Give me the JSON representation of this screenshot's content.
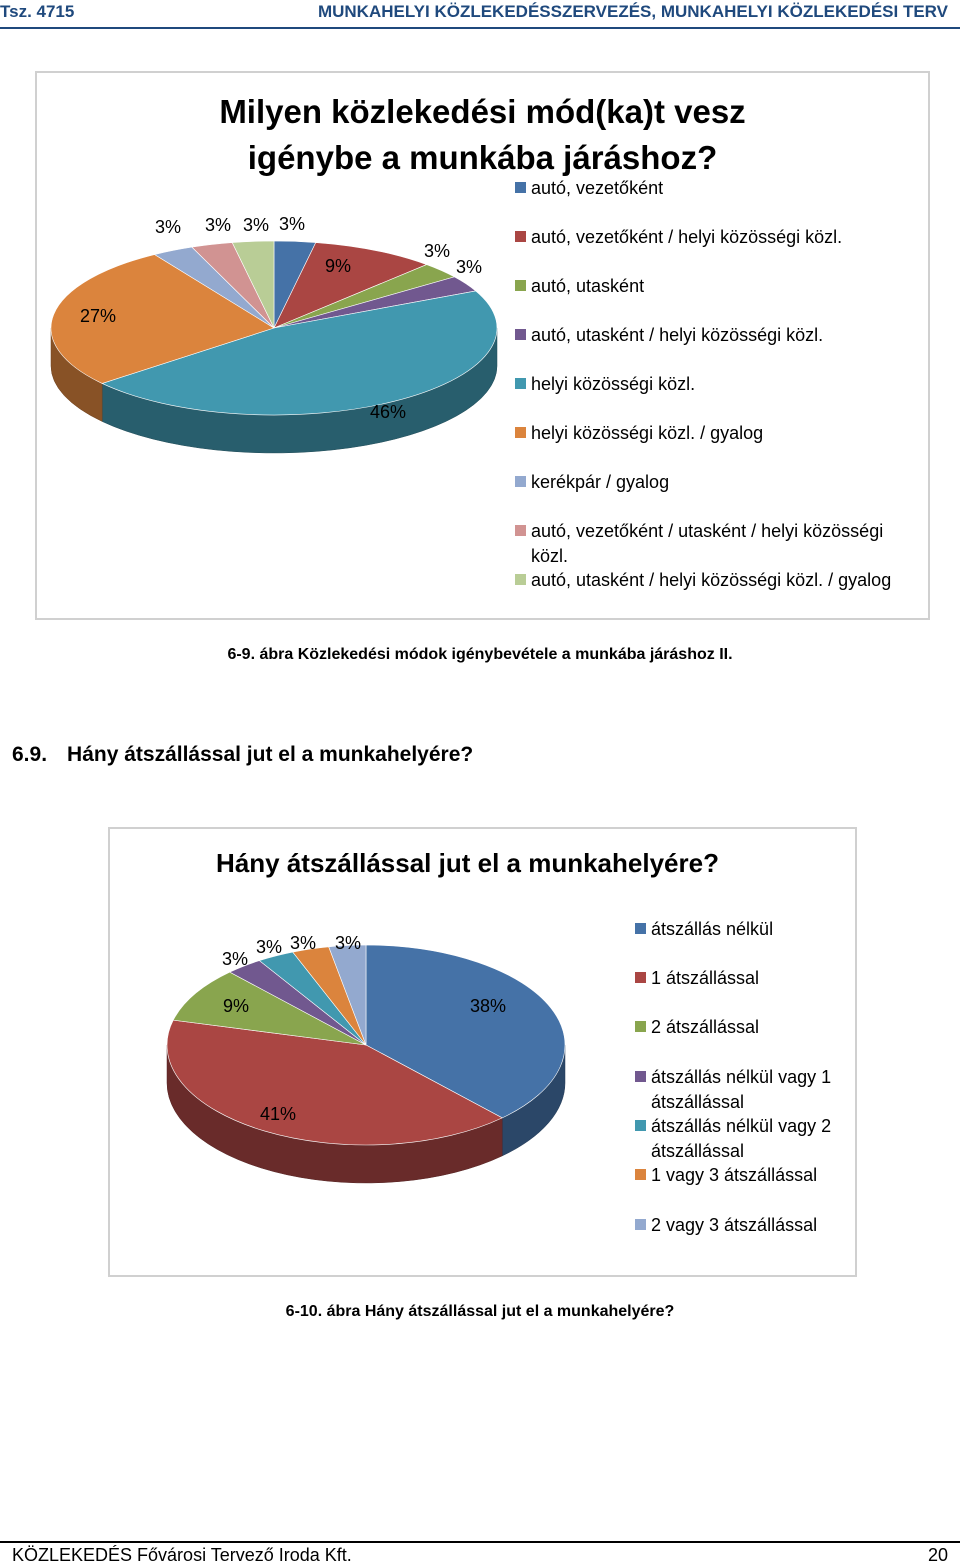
{
  "header": {
    "doc_id": "Tsz. 4715",
    "doc_title": "MUNKAHELYI KÖZLEKEDÉSSZERVEZÉS, MUNKAHELYI KÖZLEKEDÉSI TERV"
  },
  "chart_data": [
    {
      "type": "pie",
      "title": "Milyen közlekedési mód(ka)t vesz igénybe a munkába járáshoz?",
      "legend_position": "right",
      "categories": [
        "autó, vezetőként",
        "autó, vezetőként / helyi közösségi közl.",
        "autó, utasként",
        "autó, utasként / helyi közösségi közl.",
        "helyi közösségi közl.",
        "helyi közösségi közl. / gyalog",
        "kerékpár / gyalog",
        "autó, vezetőként / utasként / helyi közösségi közl.",
        "autó, utasként / helyi közösségi közl. / gyalog"
      ],
      "values": [
        3,
        9,
        3,
        3,
        46,
        27,
        3,
        3,
        3
      ],
      "labels": [
        "3%",
        "9%",
        "3%",
        "3%",
        "46%",
        "27%",
        "3%",
        "3%",
        "3%"
      ],
      "colors": [
        "#4572a7",
        "#aa4643",
        "#89a54e",
        "#71588f",
        "#4198af",
        "#db843d",
        "#93a9cf",
        "#d19392",
        "#b9cd96"
      ]
    },
    {
      "type": "pie",
      "title": "Hány átszállással jut el a munkahelyére?",
      "legend_position": "right",
      "categories": [
        "átszállás nélkül",
        "1 átszállással",
        "2 átszállással",
        "átszállás nélkül vagy 1 átszállással",
        "átszállás nélkül vagy 2 átszállással",
        "1 vagy 3 átszállással",
        "2 vagy 3 átszállással"
      ],
      "values": [
        38,
        41,
        9,
        3,
        3,
        3,
        3
      ],
      "labels": [
        "38%",
        "41%",
        "9%",
        "3%",
        "3%",
        "3%",
        "3%"
      ],
      "colors": [
        "#4572a7",
        "#aa4643",
        "#89a54e",
        "#71588f",
        "#4198af",
        "#db843d",
        "#93a9cf"
      ]
    }
  ],
  "captions": {
    "fig1": "6-9. ábra Közlekedési módok igénybevétele a munkába járáshoz II.",
    "fig2": "6-10. ábra Hány átszállással jut el a munkahelyére?"
  },
  "section": {
    "number": "6.9.",
    "title": "Hány átszállással jut el a munkahelyére?"
  },
  "footer": {
    "company": "KÖZLEKEDÉS Fővárosi Tervező Iroda Kft.",
    "page": "20"
  }
}
